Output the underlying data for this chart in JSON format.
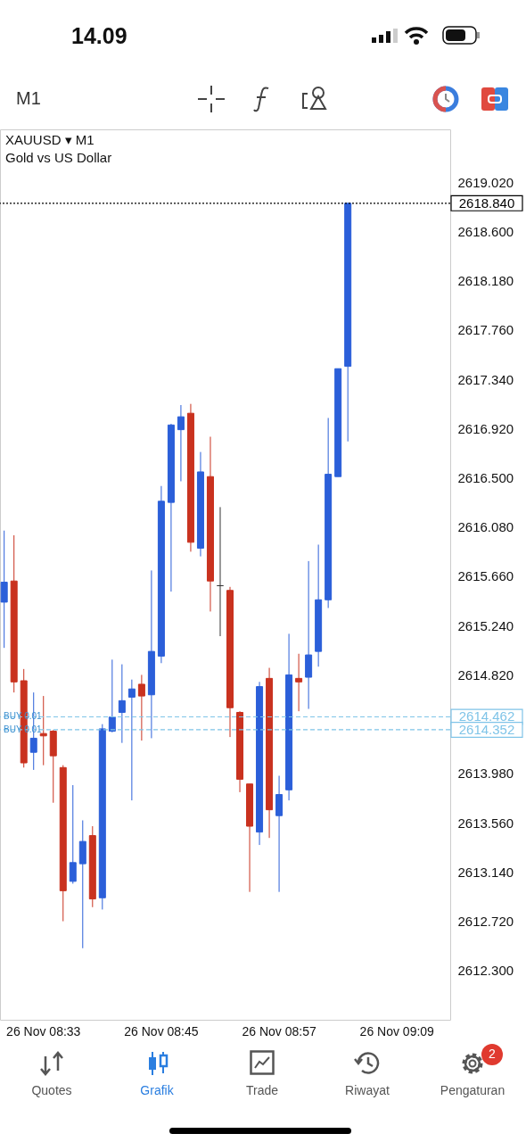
{
  "chart_data": {
    "type": "candlestick",
    "title": "XAUUSD ▾ M1",
    "subtitle": "Gold vs US Dollar",
    "categories": [
      null,
      null,
      null,
      null,
      "26 Nov 08:33",
      null,
      null,
      null,
      null,
      null,
      null,
      null,
      null,
      null,
      null,
      null,
      "26 Nov 08:45",
      null,
      null,
      null,
      null,
      null,
      null,
      null,
      null,
      null,
      null,
      null,
      "26 Nov 08:57",
      null,
      null,
      null,
      null,
      null,
      null,
      null,
      null,
      null,
      null,
      null,
      "26 Nov 09:09",
      null,
      null,
      null,
      null,
      null
    ],
    "ohlc": [
      [
        2615.44,
        2616.05,
        2615.05,
        2615.61
      ],
      [
        2615.62,
        2616.01,
        2614.67,
        2614.76
      ],
      [
        2614.77,
        2614.87,
        2614.03,
        2614.07
      ],
      [
        2614.16,
        2614.67,
        2614.01,
        2614.28
      ],
      [
        2614.32,
        2614.64,
        2614.05,
        2614.3
      ],
      [
        2614.34,
        2614.35,
        2613.73,
        2614.13
      ],
      [
        2614.03,
        2614.05,
        2612.72,
        2612.98
      ],
      [
        2613.06,
        2613.88,
        2613.04,
        2613.22
      ],
      [
        2613.21,
        2613.58,
        2612.49,
        2613.4
      ],
      [
        2613.45,
        2613.53,
        2612.84,
        2612.91
      ],
      [
        2612.92,
        2614.4,
        2612.82,
        2614.36
      ],
      [
        2614.34,
        2614.95,
        2614.33,
        2614.46
      ],
      [
        2614.5,
        2614.91,
        2614.24,
        2614.6
      ],
      [
        2614.63,
        2614.78,
        2613.75,
        2614.7
      ],
      [
        2614.74,
        2614.82,
        2614.26,
        2614.64
      ],
      [
        2614.65,
        2615.71,
        2614.28,
        2615.02
      ],
      [
        2614.98,
        2616.43,
        2614.92,
        2616.3
      ],
      [
        2616.29,
        2616.96,
        2615.53,
        2616.95
      ],
      [
        2616.91,
        2617.12,
        2616.47,
        2617.02
      ],
      [
        2617.05,
        2617.13,
        2615.87,
        2615.95
      ],
      [
        2615.9,
        2616.72,
        2615.83,
        2616.55
      ],
      [
        2616.51,
        2616.85,
        2615.36,
        2615.62
      ],
      [
        2615.58,
        2616.25,
        2615.15,
        2615.58
      ],
      [
        2615.54,
        2615.57,
        2614.29,
        2614.54
      ],
      [
        2614.5,
        2614.51,
        2613.82,
        2613.93
      ],
      [
        2613.89,
        2613.89,
        2612.97,
        2613.53
      ],
      [
        2613.48,
        2614.76,
        2613.37,
        2614.72
      ],
      [
        2614.79,
        2614.88,
        2613.43,
        2613.67
      ],
      [
        2613.62,
        2613.96,
        2612.97,
        2613.8
      ],
      [
        2613.84,
        2615.17,
        2613.75,
        2614.82
      ],
      [
        2614.79,
        2615.0,
        2614.51,
        2614.76
      ],
      [
        2614.8,
        2615.79,
        2614.53,
        2614.99
      ],
      [
        2615.02,
        2615.93,
        2614.89,
        2615.46
      ],
      [
        2615.46,
        2617.01,
        2615.39,
        2616.53
      ],
      [
        2616.51,
        2617.43,
        2616.51,
        2617.43
      ],
      [
        2617.45,
        2618.84,
        2616.81,
        2618.84
      ],
      null,
      null,
      null,
      null,
      null,
      null,
      null,
      null,
      null,
      null
    ],
    "colors": [
      "#2b5fd9",
      "#c9321f",
      "#c9321f",
      "#2b5fd9",
      "#c9321f",
      "#c9321f",
      "#c9321f",
      "#2b5fd9",
      "#2b5fd9",
      "#c9321f",
      "#2b5fd9",
      "#2b5fd9",
      "#2b5fd9",
      "#2b5fd9",
      "#c9321f",
      "#2b5fd9",
      "#2b5fd9",
      "#2b5fd9",
      "#2b5fd9",
      "#c9321f",
      "#2b5fd9",
      "#c9321f",
      "#333333",
      "#c9321f",
      "#c9321f",
      "#c9321f",
      "#2b5fd9",
      "#c9321f",
      "#2b5fd9",
      "#2b5fd9",
      "#c9321f",
      "#2b5fd9",
      "#2b5fd9",
      "#2b5fd9",
      "#2b5fd9",
      "#2b5fd9",
      null,
      null,
      null,
      null,
      null,
      null,
      null,
      null,
      null,
      null
    ],
    "ylim": [
      2611.88,
      2619.47
    ],
    "yticks": [
      {
        "value": 2619.02,
        "label": "2619.020"
      },
      {
        "value": 2618.6,
        "label": "2618.600"
      },
      {
        "value": 2618.18,
        "label": "2618.180"
      },
      {
        "value": 2617.76,
        "label": "2617.760"
      },
      {
        "value": 2617.34,
        "label": "2617.340"
      },
      {
        "value": 2616.92,
        "label": "2616.920"
      },
      {
        "value": 2616.5,
        "label": "2616.500"
      },
      {
        "value": 2616.08,
        "label": "2616.080"
      },
      {
        "value": 2615.66,
        "label": "2615.660"
      },
      {
        "value": 2615.24,
        "label": "2615.240"
      },
      {
        "value": 2614.82,
        "label": "2614.820"
      },
      {
        "value": 2613.98,
        "label": "2613.980"
      },
      {
        "value": 2613.56,
        "label": "2613.560"
      },
      {
        "value": 2613.14,
        "label": "2613.140"
      },
      {
        "value": 2612.72,
        "label": "2612.720"
      },
      {
        "value": 2612.3,
        "label": "2612.300"
      }
    ],
    "grid": false,
    "ref_lines": [
      {
        "axis": "y",
        "value": 2618.84,
        "label": "2618.840",
        "color": "#000000",
        "line_style": "dotted"
      },
      {
        "axis": "y",
        "value": 2614.462,
        "label": "2614.462",
        "color": "#7fc4e8",
        "line_style": "dashed"
      },
      {
        "axis": "y",
        "value": 2614.352,
        "label": "2614.352",
        "color": "#7fc4e8",
        "line_style": "dashed"
      }
    ],
    "annotations": [
      "14.09",
      "M1",
      "Quotes",
      "Grafik",
      "Trade",
      "Riwayat",
      "Pengaturan",
      "2",
      {
        "text": "BUY 0.01",
        "y": 2614.462
      },
      {
        "text": "BUY 0.01",
        "y": 2614.352
      }
    ]
  }
}
